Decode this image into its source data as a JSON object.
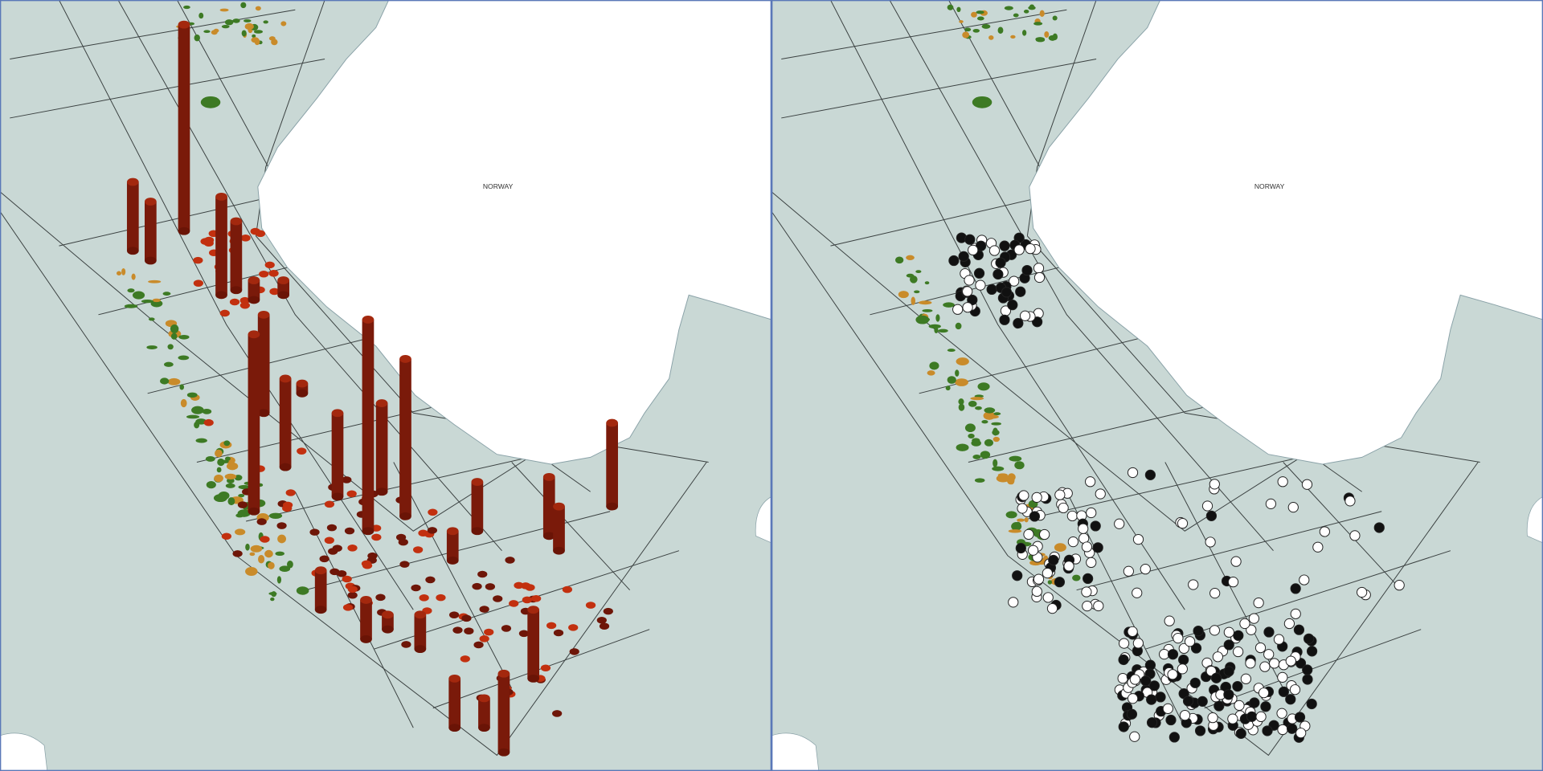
{
  "panels": [
    {
      "label": "NORWAY"
    },
    {
      "label": "NORWAY"
    }
  ]
}
